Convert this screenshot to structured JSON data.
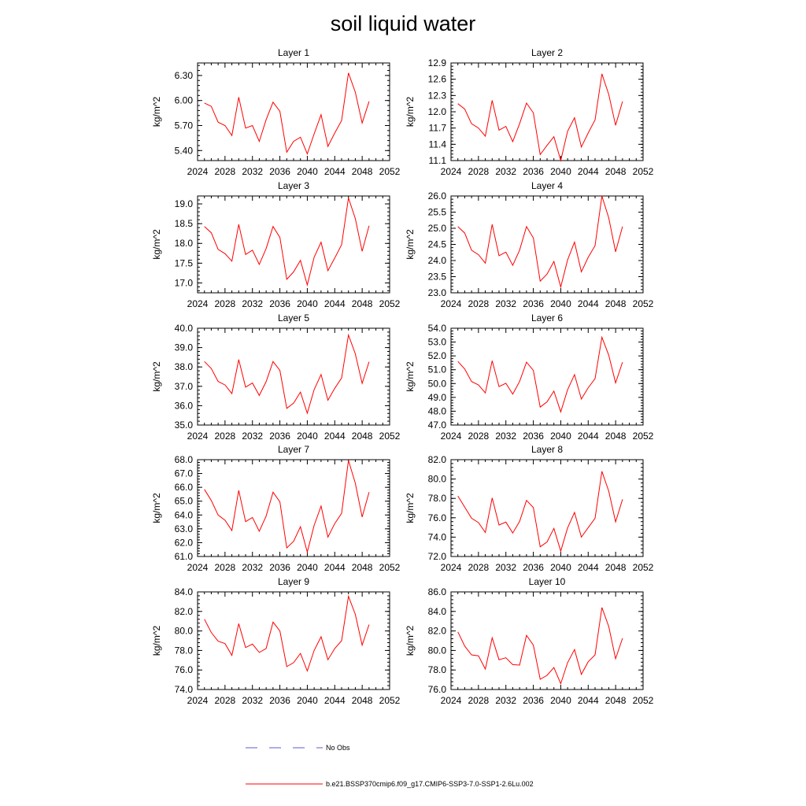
{
  "title": "soil liquid water",
  "colors": {
    "model": "#ff0000",
    "obs": "#5b5bd6",
    "axis": "#000000"
  },
  "legend": {
    "obs_label": "No Obs",
    "model_label": "b.e21.BSSP370cmip6.f09_g17.CMIP6-SSP3-7.0-SSP1-2.6Lu.002"
  },
  "chart_data": [
    {
      "type": "line",
      "title": "Layer 1",
      "ylabel": "kg/m^2",
      "xlim": [
        2024,
        2052
      ],
      "xticks": [
        2024,
        2028,
        2032,
        2036,
        2040,
        2044,
        2048,
        2052
      ],
      "ylim": [
        5.28,
        6.45
      ],
      "yticks": [
        "5.40",
        "5.70",
        "6.00",
        "6.30"
      ],
      "x": [
        2025,
        2026,
        2027,
        2028,
        2029,
        2030,
        2031,
        2032,
        2033,
        2034,
        2035,
        2036,
        2037,
        2038,
        2039,
        2040,
        2041,
        2042,
        2043,
        2044,
        2045,
        2046,
        2047,
        2048,
        2049
      ],
      "values": [
        5.97,
        5.93,
        5.74,
        5.7,
        5.58,
        6.04,
        5.67,
        5.7,
        5.51,
        5.77,
        5.98,
        5.87,
        5.38,
        5.51,
        5.56,
        5.36,
        5.6,
        5.83,
        5.45,
        5.61,
        5.76,
        6.33,
        6.1,
        5.73,
        5.99
      ]
    },
    {
      "type": "line",
      "title": "Layer 2",
      "ylabel": "kg/m^2",
      "xlim": [
        2024,
        2052
      ],
      "xticks": [
        2024,
        2028,
        2032,
        2036,
        2040,
        2044,
        2048,
        2052
      ],
      "ylim": [
        11.1,
        12.9
      ],
      "yticks": [
        "11.1",
        "11.4",
        "11.7",
        "12.0",
        "12.3",
        "12.6",
        "12.9"
      ],
      "x": [
        2025,
        2026,
        2027,
        2028,
        2029,
        2030,
        2031,
        2032,
        2033,
        2034,
        2035,
        2036,
        2037,
        2038,
        2039,
        2040,
        2041,
        2042,
        2043,
        2044,
        2045,
        2046,
        2047,
        2048,
        2049
      ],
      "values": [
        12.15,
        12.05,
        11.78,
        11.7,
        11.55,
        12.21,
        11.66,
        11.73,
        11.45,
        11.78,
        12.16,
        11.98,
        11.21,
        11.38,
        11.54,
        11.1,
        11.64,
        11.89,
        11.35,
        11.61,
        11.85,
        12.7,
        12.32,
        11.75,
        12.19
      ]
    },
    {
      "type": "line",
      "title": "Layer 3",
      "ylabel": "kg/m^2",
      "xlim": [
        2024,
        2052
      ],
      "xticks": [
        2024,
        2028,
        2032,
        2036,
        2040,
        2044,
        2048,
        2052
      ],
      "ylim": [
        16.75,
        19.2
      ],
      "yticks": [
        "17.0",
        "17.5",
        "18.0",
        "18.5",
        "19.0"
      ],
      "x": [
        2025,
        2026,
        2027,
        2028,
        2029,
        2030,
        2031,
        2032,
        2033,
        2034,
        2035,
        2036,
        2037,
        2038,
        2039,
        2040,
        2041,
        2042,
        2043,
        2044,
        2045,
        2046,
        2047,
        2048,
        2049
      ],
      "values": [
        18.43,
        18.27,
        17.85,
        17.74,
        17.55,
        18.48,
        17.72,
        17.83,
        17.47,
        17.87,
        18.43,
        18.15,
        17.09,
        17.28,
        17.57,
        16.95,
        17.65,
        18.03,
        17.31,
        17.63,
        17.97,
        19.15,
        18.63,
        17.8,
        18.45
      ]
    },
    {
      "type": "line",
      "title": "Layer 4",
      "ylabel": "kg/m^2",
      "xlim": [
        2024,
        2052
      ],
      "xticks": [
        2024,
        2028,
        2032,
        2036,
        2040,
        2044,
        2048,
        2052
      ],
      "ylim": [
        23.0,
        26.0
      ],
      "yticks": [
        "23.0",
        "23.5",
        "24.0",
        "24.5",
        "25.0",
        "25.5",
        "26.0"
      ],
      "x": [
        2025,
        2026,
        2027,
        2028,
        2029,
        2030,
        2031,
        2032,
        2033,
        2034,
        2035,
        2036,
        2037,
        2038,
        2039,
        2040,
        2041,
        2042,
        2043,
        2044,
        2045,
        2046,
        2047,
        2048,
        2049
      ],
      "values": [
        25.05,
        24.85,
        24.32,
        24.18,
        23.92,
        25.12,
        24.15,
        24.26,
        23.85,
        24.32,
        25.05,
        24.7,
        23.36,
        23.58,
        23.97,
        23.18,
        24.02,
        24.57,
        23.65,
        24.1,
        24.46,
        26.0,
        25.32,
        24.27,
        25.05
      ]
    },
    {
      "type": "line",
      "title": "Layer 5",
      "ylabel": "kg/m^2",
      "xlim": [
        2024,
        2052
      ],
      "xticks": [
        2024,
        2028,
        2032,
        2036,
        2040,
        2044,
        2048,
        2052
      ],
      "ylim": [
        35.0,
        40.0
      ],
      "yticks": [
        "35.0",
        "36.0",
        "37.0",
        "38.0",
        "39.0",
        "40.0"
      ],
      "x": [
        2025,
        2026,
        2027,
        2028,
        2029,
        2030,
        2031,
        2032,
        2033,
        2034,
        2035,
        2036,
        2037,
        2038,
        2039,
        2040,
        2041,
        2042,
        2043,
        2044,
        2045,
        2046,
        2047,
        2048,
        2049
      ],
      "values": [
        38.28,
        37.92,
        37.25,
        37.07,
        36.62,
        38.38,
        36.96,
        37.17,
        36.53,
        37.24,
        38.28,
        37.82,
        35.86,
        36.13,
        36.7,
        35.61,
        36.83,
        37.61,
        36.28,
        36.9,
        37.43,
        39.65,
        38.68,
        37.15,
        38.27
      ]
    },
    {
      "type": "line",
      "title": "Layer 6",
      "ylabel": "kg/m^2",
      "xlim": [
        2024,
        2052
      ],
      "xticks": [
        2024,
        2028,
        2032,
        2036,
        2040,
        2044,
        2048,
        2052
      ],
      "ylim": [
        47.0,
        54.0
      ],
      "yticks": [
        "47.0",
        "48.0",
        "49.0",
        "50.0",
        "51.0",
        "52.0",
        "53.0",
        "54.0"
      ],
      "x": [
        2025,
        2026,
        2027,
        2028,
        2029,
        2030,
        2031,
        2032,
        2033,
        2034,
        2035,
        2036,
        2037,
        2038,
        2039,
        2040,
        2041,
        2042,
        2043,
        2044,
        2045,
        2046,
        2047,
        2048,
        2049
      ],
      "values": [
        51.6,
        51.05,
        50.15,
        49.9,
        49.32,
        51.65,
        49.78,
        50.02,
        49.23,
        50.15,
        51.55,
        50.95,
        48.3,
        48.68,
        49.45,
        47.95,
        49.55,
        50.65,
        48.88,
        49.7,
        50.35,
        53.35,
        52.05,
        50.05,
        51.55
      ]
    },
    {
      "type": "line",
      "title": "Layer 7",
      "ylabel": "kg/m^2",
      "xlim": [
        2024,
        2052
      ],
      "xticks": [
        2024,
        2028,
        2032,
        2036,
        2040,
        2044,
        2048,
        2052
      ],
      "ylim": [
        61.0,
        68.0
      ],
      "yticks": [
        "61.0",
        "62.0",
        "63.0",
        "64.0",
        "65.0",
        "66.0",
        "67.0",
        "68.0"
      ],
      "x": [
        2025,
        2026,
        2027,
        2028,
        2029,
        2030,
        2031,
        2032,
        2033,
        2034,
        2035,
        2036,
        2037,
        2038,
        2039,
        2040,
        2041,
        2042,
        2043,
        2044,
        2045,
        2046,
        2047,
        2048,
        2049
      ],
      "values": [
        65.85,
        65.05,
        64.0,
        63.62,
        62.88,
        65.78,
        63.52,
        63.82,
        62.82,
        63.92,
        65.65,
        64.95,
        61.62,
        62.1,
        63.15,
        61.32,
        63.25,
        64.65,
        62.4,
        63.38,
        64.12,
        67.95,
        66.3,
        63.85,
        65.65
      ]
    },
    {
      "type": "line",
      "title": "Layer 8",
      "ylabel": "kg/m^2",
      "xlim": [
        2024,
        2052
      ],
      "xticks": [
        2024,
        2028,
        2032,
        2036,
        2040,
        2044,
        2048,
        2052
      ],
      "ylim": [
        72.0,
        82.0
      ],
      "yticks": [
        "72.0",
        "74.0",
        "76.0",
        "78.0",
        "80.0",
        "82.0"
      ],
      "x": [
        2025,
        2026,
        2027,
        2028,
        2029,
        2030,
        2031,
        2032,
        2033,
        2034,
        2035,
        2036,
        2037,
        2038,
        2039,
        2040,
        2041,
        2042,
        2043,
        2044,
        2045,
        2046,
        2047,
        2048,
        2049
      ],
      "values": [
        78.25,
        77.1,
        75.95,
        75.5,
        74.48,
        78.05,
        75.25,
        75.55,
        74.42,
        75.62,
        77.8,
        77.05,
        73.0,
        73.5,
        74.9,
        72.55,
        74.95,
        76.55,
        74.0,
        74.98,
        75.95,
        80.8,
        78.75,
        75.58,
        77.9
      ]
    },
    {
      "type": "line",
      "title": "Layer 9",
      "ylabel": "kg/m^2",
      "xlim": [
        2024,
        2052
      ],
      "xticks": [
        2024,
        2028,
        2032,
        2036,
        2040,
        2044,
        2048,
        2052
      ],
      "ylim": [
        74.0,
        84.0
      ],
      "yticks": [
        "74.0",
        "76.0",
        "78.0",
        "80.0",
        "82.0",
        "84.0"
      ],
      "x": [
        2025,
        2026,
        2027,
        2028,
        2029,
        2030,
        2031,
        2032,
        2033,
        2034,
        2035,
        2036,
        2037,
        2038,
        2039,
        2040,
        2041,
        2042,
        2043,
        2044,
        2045,
        2046,
        2047,
        2048,
        2049
      ],
      "values": [
        81.2,
        79.85,
        78.95,
        78.7,
        77.5,
        80.75,
        78.3,
        78.65,
        77.8,
        78.2,
        80.9,
        80.0,
        76.35,
        76.75,
        77.7,
        75.9,
        78.0,
        79.4,
        77.05,
        78.2,
        79.0,
        83.55,
        81.7,
        78.55,
        80.65
      ]
    },
    {
      "type": "line",
      "title": "Layer 10",
      "ylabel": "kg/m^2",
      "xlim": [
        2024,
        2052
      ],
      "xticks": [
        2024,
        2028,
        2032,
        2036,
        2040,
        2044,
        2048,
        2052
      ],
      "ylim": [
        76.0,
        86.0
      ],
      "yticks": [
        "76.0",
        "78.0",
        "80.0",
        "82.0",
        "84.0",
        "86.0"
      ],
      "x": [
        2025,
        2026,
        2027,
        2028,
        2029,
        2030,
        2031,
        2032,
        2033,
        2034,
        2035,
        2036,
        2037,
        2038,
        2039,
        2040,
        2041,
        2042,
        2043,
        2044,
        2045,
        2046,
        2047,
        2048,
        2049
      ],
      "values": [
        81.9,
        80.45,
        79.55,
        79.45,
        78.1,
        81.3,
        79.05,
        79.25,
        78.55,
        78.5,
        81.55,
        80.55,
        77.05,
        77.45,
        78.25,
        76.6,
        78.75,
        80.1,
        77.55,
        78.85,
        79.55,
        84.4,
        82.45,
        79.15,
        81.25
      ]
    }
  ]
}
